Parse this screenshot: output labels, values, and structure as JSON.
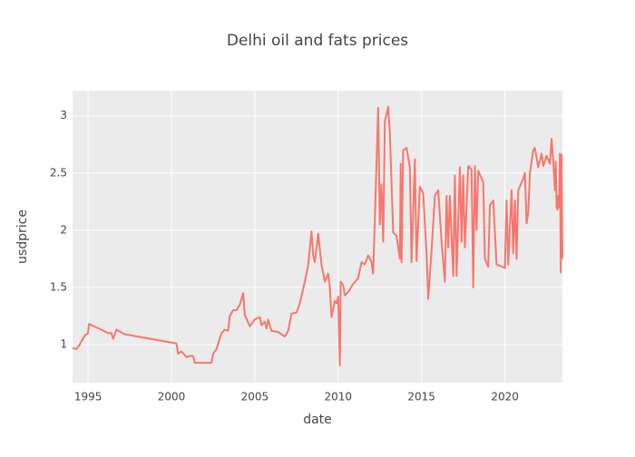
{
  "chart_data": {
    "type": "line",
    "title": "Delhi oil and fats prices",
    "x_label": "date",
    "y_label": "usdprice",
    "x": [
      1994.07,
      1994.3,
      1994.5,
      1994.8,
      1995.0,
      1995.05,
      1995.8,
      1996.2,
      1996.4,
      1996.5,
      1996.7,
      1997.2,
      2000.3,
      2000.4,
      2000.6,
      2000.9,
      2001.1,
      2001.3,
      2001.4,
      2002.4,
      2002.5,
      2002.7,
      2003.0,
      2003.2,
      2003.4,
      2003.5,
      2003.7,
      2003.9,
      2004.1,
      2004.3,
      2004.4,
      2004.7,
      2005.0,
      2005.3,
      2005.4,
      2005.6,
      2005.7,
      2005.8,
      2006.0,
      2006.4,
      2006.8,
      2007.0,
      2007.2,
      2007.5,
      2007.7,
      2008.0,
      2008.2,
      2008.4,
      2008.5,
      2008.6,
      2008.8,
      2009.0,
      2009.2,
      2009.4,
      2009.5,
      2009.6,
      2009.8,
      2009.9,
      2010.0,
      2010.1,
      2010.15,
      2010.3,
      2010.4,
      2010.6,
      2010.9,
      2011.2,
      2011.4,
      2011.6,
      2011.8,
      2012.0,
      2012.1,
      2012.4,
      2012.5,
      2012.6,
      2012.7,
      2012.8,
      2013.0,
      2013.1,
      2013.3,
      2013.5,
      2013.7,
      2013.75,
      2013.8,
      2013.9,
      2014.1,
      2014.3,
      2014.4,
      2014.6,
      2014.7,
      2014.9,
      2015.1,
      2015.3,
      2015.4,
      2015.6,
      2015.8,
      2016.0,
      2016.2,
      2016.4,
      2016.5,
      2016.6,
      2016.7,
      2016.9,
      2017.0,
      2017.1,
      2017.3,
      2017.4,
      2017.5,
      2017.6,
      2017.8,
      2018.0,
      2018.1,
      2018.2,
      2018.3,
      2018.4,
      2018.7,
      2018.8,
      2019.0,
      2019.1,
      2019.3,
      2019.5,
      2020.0,
      2020.1,
      2020.2,
      2020.4,
      2020.5,
      2020.6,
      2020.7,
      2020.8,
      2021.1,
      2021.2,
      2021.3,
      2021.4,
      2021.5,
      2021.7,
      2021.8,
      2022.0,
      2022.2,
      2022.3,
      2022.5,
      2022.7,
      2022.8,
      2022.9,
      2023.0,
      2023.05,
      2023.1,
      2023.15,
      2023.2,
      2023.25,
      2023.3,
      2023.35,
      2023.4,
      2023.45
    ],
    "series": [
      {
        "name": "usdprice",
        "color": "#F8766D",
        "values": [
          0.97,
          0.96,
          1.0,
          1.08,
          1.1,
          1.18,
          1.13,
          1.1,
          1.1,
          1.05,
          1.13,
          1.09,
          1.01,
          0.92,
          0.94,
          0.89,
          0.9,
          0.9,
          0.84,
          0.84,
          0.92,
          0.96,
          1.1,
          1.13,
          1.12,
          1.25,
          1.3,
          1.3,
          1.35,
          1.45,
          1.26,
          1.16,
          1.22,
          1.24,
          1.17,
          1.2,
          1.14,
          1.22,
          1.12,
          1.11,
          1.07,
          1.12,
          1.27,
          1.28,
          1.36,
          1.55,
          1.69,
          1.99,
          1.78,
          1.72,
          1.97,
          1.7,
          1.55,
          1.62,
          1.5,
          1.24,
          1.38,
          1.36,
          1.42,
          0.82,
          1.55,
          1.52,
          1.43,
          1.46,
          1.53,
          1.58,
          1.72,
          1.7,
          1.78,
          1.72,
          1.62,
          3.07,
          2.05,
          2.4,
          1.9,
          2.95,
          3.08,
          2.85,
          1.98,
          1.95,
          1.75,
          2.58,
          1.72,
          2.7,
          2.72,
          2.55,
          1.72,
          2.62,
          1.73,
          2.38,
          2.32,
          1.8,
          1.4,
          1.82,
          2.3,
          2.35,
          1.9,
          1.55,
          2.3,
          1.85,
          2.3,
          1.6,
          2.48,
          1.6,
          2.55,
          1.9,
          2.48,
          1.85,
          2.56,
          2.53,
          1.5,
          2.56,
          2.0,
          2.52,
          2.42,
          1.75,
          1.68,
          2.22,
          2.26,
          1.7,
          1.67,
          2.26,
          1.7,
          2.35,
          1.8,
          2.26,
          1.75,
          2.35,
          2.45,
          2.5,
          2.06,
          2.15,
          2.5,
          2.7,
          2.72,
          2.55,
          2.67,
          2.56,
          2.65,
          2.58,
          2.8,
          2.6,
          2.35,
          2.6,
          2.2,
          2.18,
          2.3,
          2.2,
          2.67,
          1.63,
          2.66,
          1.75
        ]
      }
    ],
    "xlim": [
      1994.07,
      2023.45
    ],
    "xticks": [
      1995,
      2000,
      2005,
      2010,
      2015,
      2020
    ],
    "ylim": [
      0.667,
      3.22
    ],
    "yticks": [
      1,
      1.5,
      2,
      2.5,
      3
    ],
    "grid": true
  }
}
